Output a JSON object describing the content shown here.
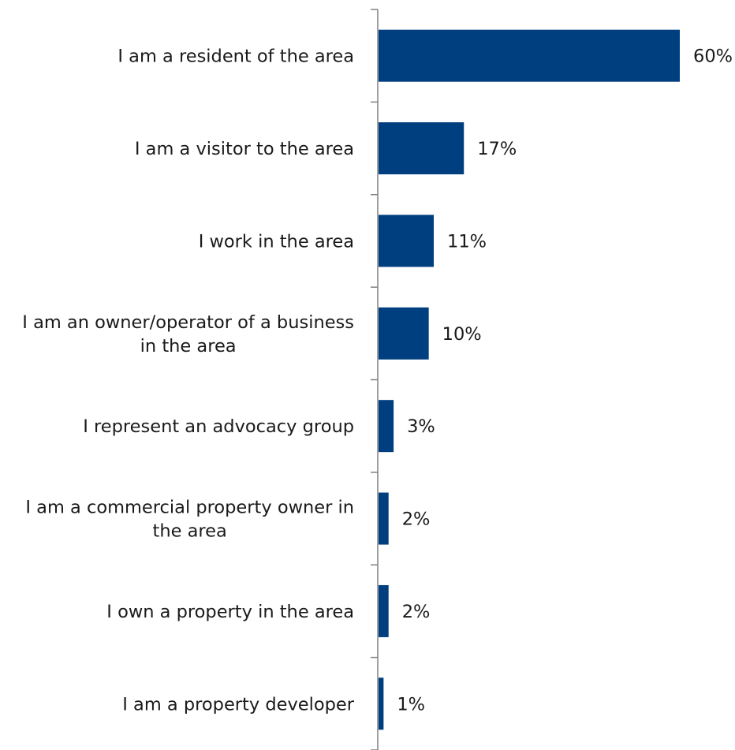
{
  "chart_data": {
    "type": "bar",
    "orientation": "horizontal",
    "categories": [
      "I am a resident of the area",
      "I am a visitor to the area",
      "I work in the area",
      "I am an owner/operator of a business in the area",
      "I represent an advocacy group",
      "I am a commercial property owner in the area",
      "I own a property in the area",
      "I am a property developer"
    ],
    "category_lines": [
      [
        "I am a resident of the area"
      ],
      [
        "I am a visitor to the area"
      ],
      [
        "I work in the area"
      ],
      [
        "I am an owner/operator of a business",
        "in the area"
      ],
      [
        "I represent an advocacy group"
      ],
      [
        "I am a commercial property owner in",
        "the area"
      ],
      [
        "I own a property in the area"
      ],
      [
        "I am a property developer"
      ]
    ],
    "values": [
      60,
      17,
      11,
      10,
      3,
      2,
      2,
      1
    ],
    "value_labels": [
      "60%",
      "17%",
      "11%",
      "10%",
      "3%",
      "2%",
      "2%",
      "1%"
    ],
    "unit": "%",
    "xlim": [
      0,
      60
    ],
    "grid": false,
    "legend": "none",
    "bar_color": "#003f7f",
    "axis_color": "#808080"
  }
}
